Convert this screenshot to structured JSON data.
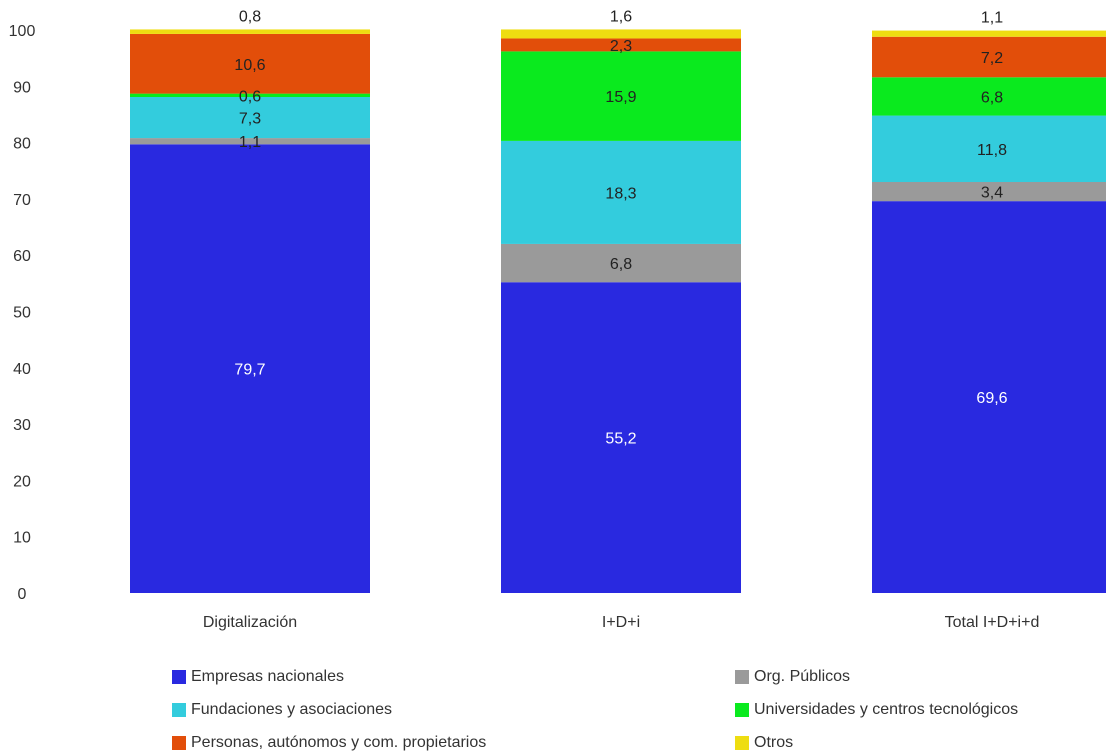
{
  "chart_data": {
    "type": "bar",
    "stacked": true,
    "categories": [
      "Digitalización",
      "I+D+i",
      "Total I+D+i+d"
    ],
    "ylim": [
      0,
      100
    ],
    "yticks": [
      "0",
      "10",
      "20",
      "30",
      "40",
      "50",
      "60",
      "70",
      "80",
      "90",
      "100"
    ],
    "title": "",
    "xlabel": "",
    "ylabel": "",
    "grid": false,
    "legend_position": "bottom",
    "series": [
      {
        "name": "Empresas nacionales",
        "color": "#2929E0",
        "values": [
          79.7,
          55.2,
          69.6
        ],
        "labels": [
          "79,7",
          "55,2",
          "69,6"
        ],
        "label_color": "#ffffff"
      },
      {
        "name": "Org. Públicos",
        "color": "#9A9A9A",
        "values": [
          1.1,
          6.8,
          3.4
        ],
        "labels": [
          "1,1",
          "6,8",
          "3,4"
        ],
        "label_color": "#222222"
      },
      {
        "name": "Fundaciones y asociaciones",
        "color": "#33CCDD",
        "values": [
          7.3,
          18.3,
          11.8
        ],
        "labels": [
          "7,3",
          "18,3",
          "11,8"
        ],
        "label_color": "#222222"
      },
      {
        "name": "Universidades y centros tecnológicos",
        "color": "#0AEA1E",
        "values": [
          0.6,
          15.9,
          6.8
        ],
        "labels": [
          "0,6",
          "15,9",
          "6,8"
        ],
        "label_color": "#222222"
      },
      {
        "name": "Personas, autónomos y com. propietarios",
        "color": "#E24E0A",
        "values": [
          10.6,
          2.3,
          7.2
        ],
        "labels": [
          "10,6",
          "2,3",
          "7,2"
        ],
        "label_color": "#222222"
      },
      {
        "name": "Otros",
        "color": "#EEDD11",
        "values": [
          0.8,
          1.6,
          1.1
        ],
        "labels": [
          "0,8",
          "1,6",
          "1,1"
        ],
        "label_color": "#222222"
      }
    ]
  }
}
